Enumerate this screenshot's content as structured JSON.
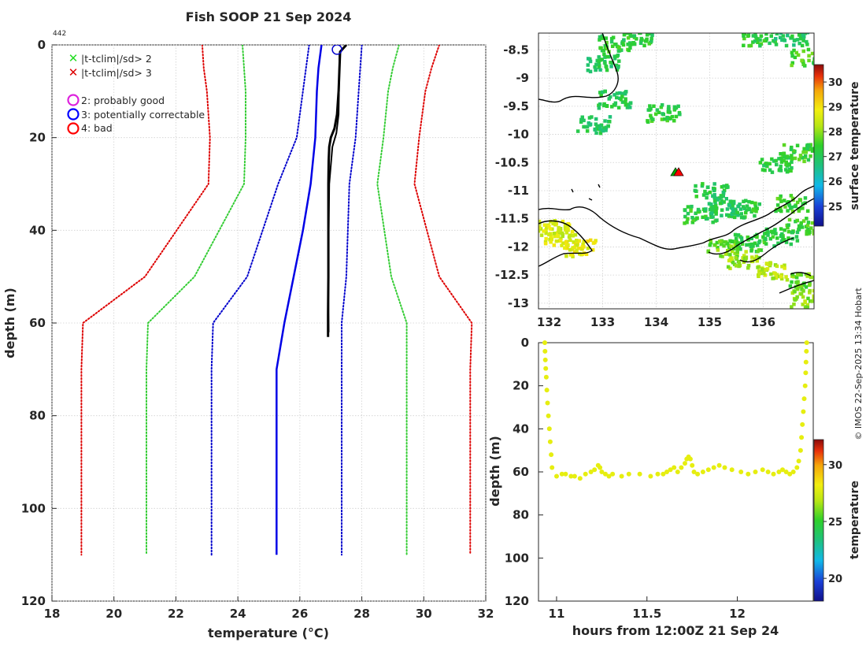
{
  "title": "Fish SOOP 21 Sep 2024",
  "profile_count": "442",
  "credit": "© IMOS 22-Sep-2025 13:34 Hobart",
  "chart_data": [
    {
      "id": "profile",
      "type": "line",
      "xlabel": "temperature (°C)",
      "ylabel": "depth (m)",
      "xlim": [
        18,
        32
      ],
      "ylim": [
        0,
        120
      ],
      "y_reversed": true,
      "grid": true,
      "xticks": [
        18,
        20,
        22,
        24,
        26,
        28,
        30,
        32
      ],
      "yticks": [
        0,
        20,
        40,
        60,
        80,
        100,
        120
      ],
      "legend": [
        {
          "label": "|t-tclim|/sd> 2",
          "marker": "x",
          "color": "#22dd22"
        },
        {
          "label": "|t-tclim|/sd> 3",
          "marker": "x",
          "color": "#dd0000"
        },
        {
          "label": "2: probably good",
          "marker": "o",
          "color": "#dd22dd"
        },
        {
          "label": "3: potentially correctable",
          "marker": "o",
          "color": "#0000ff"
        },
        {
          "label": "4: bad",
          "marker": "o",
          "color": "#ff0000"
        }
      ],
      "series": [
        {
          "name": "climatology mean",
          "style": "solid",
          "color": "#0000e6",
          "width": 2.5,
          "x": [
            26.7,
            26.6,
            26.55,
            26.5,
            26.35,
            26.1,
            25.8,
            25.5,
            25.25,
            25.25
          ],
          "y": [
            0,
            5,
            10,
            20,
            30,
            40,
            50,
            60,
            70,
            110
          ]
        },
        {
          "name": "clim -1sd",
          "style": "dotted",
          "color": "#0000cc",
          "width": 2,
          "x": [
            26.3,
            26.2,
            26.1,
            25.9,
            25.3,
            24.3,
            23.2,
            23.15,
            23.15
          ],
          "y": [
            0,
            5,
            10,
            20,
            30,
            50,
            60,
            70,
            110
          ]
        },
        {
          "name": "clim +1sd",
          "style": "dotted",
          "color": "#0000cc",
          "width": 2,
          "x": [
            28.0,
            27.95,
            27.9,
            27.8,
            27.6,
            27.5,
            27.35,
            27.35,
            27.35
          ],
          "y": [
            0,
            5,
            10,
            20,
            30,
            50,
            60,
            70,
            110
          ]
        },
        {
          "name": "clim -2sd",
          "style": "dotted",
          "color": "#33cc33",
          "width": 2,
          "x": [
            24.15,
            24.2,
            24.25,
            24.25,
            24.2,
            22.6,
            21.1,
            21.05,
            21.05
          ],
          "y": [
            0,
            5,
            10,
            20,
            30,
            50,
            60,
            70,
            110
          ]
        },
        {
          "name": "clim +2sd",
          "style": "dotted",
          "color": "#33cc33",
          "width": 2,
          "x": [
            29.2,
            29.0,
            28.85,
            28.7,
            28.5,
            28.95,
            29.45,
            29.45,
            29.45
          ],
          "y": [
            0,
            5,
            10,
            20,
            30,
            50,
            60,
            70,
            110
          ]
        },
        {
          "name": "clim -3sd",
          "style": "dotted",
          "color": "#dd0000",
          "width": 2,
          "x": [
            22.85,
            22.9,
            23.0,
            23.1,
            23.05,
            21.0,
            19.0,
            18.95,
            18.95
          ],
          "y": [
            0,
            5,
            10,
            20,
            30,
            50,
            60,
            70,
            110
          ]
        },
        {
          "name": "clim +3sd",
          "style": "dotted",
          "color": "#dd0000",
          "width": 2,
          "x": [
            30.5,
            30.25,
            30.05,
            29.85,
            29.7,
            30.5,
            31.55,
            31.5,
            31.5
          ],
          "y": [
            0,
            5,
            10,
            20,
            30,
            50,
            60,
            70,
            110
          ]
        },
        {
          "name": "observed profile (down)",
          "style": "solid",
          "color": "#000000",
          "width": 3,
          "x": [
            27.5,
            27.3,
            27.28,
            27.25,
            27.2,
            27.12,
            27.0,
            26.95,
            26.93,
            26.92,
            26.92,
            26.92,
            26.91,
            26.91
          ],
          "y": [
            0,
            1.5,
            5,
            10,
            15,
            18,
            20,
            22,
            25,
            30,
            40,
            50,
            58,
            63
          ]
        },
        {
          "name": "observed profile (up)",
          "style": "solid",
          "color": "#000000",
          "width": 2,
          "x": [
            26.93,
            26.92,
            26.93,
            26.95,
            27.05,
            27.18,
            27.25,
            27.28
          ],
          "y": [
            62,
            55,
            40,
            30,
            22,
            19,
            15,
            2
          ]
        }
      ],
      "surface_marker": {
        "x": 27.2,
        "y": 1.0,
        "color": "#0000cc",
        "shape": "circle"
      }
    },
    {
      "id": "map",
      "type": "heatmap",
      "xlim": [
        131.8,
        136.95
      ],
      "ylim": [
        -13.1,
        -8.2
      ],
      "xticks": [
        132,
        133,
        134,
        135,
        136
      ],
      "yticks": [
        -8.5,
        -9,
        -9.5,
        -10,
        -10.5,
        -11,
        -11.5,
        -12,
        -12.5,
        -13
      ],
      "colorbar": {
        "label": "surface temperature",
        "range": [
          24.2,
          30.7
        ],
        "ticks": [
          25,
          26,
          27,
          28,
          29,
          30
        ]
      },
      "station": {
        "lon": 134.45,
        "lat": -10.63,
        "marker_colors": [
          "#00aa00",
          "#ff0000"
        ]
      },
      "sst_patches": [
        {
          "lon": 133.0,
          "lat": -8.7,
          "temp": 27.0
        },
        {
          "lon": 133.2,
          "lat": -8.35,
          "temp": 27.3
        },
        {
          "lon": 133.6,
          "lat": -8.25,
          "temp": 27.2
        },
        {
          "lon": 133.2,
          "lat": -9.35,
          "temp": 27.1
        },
        {
          "lon": 132.8,
          "lat": -9.8,
          "temp": 27.0
        },
        {
          "lon": 134.1,
          "lat": -9.6,
          "temp": 27.3
        },
        {
          "lon": 135.9,
          "lat": -8.25,
          "temp": 27.3
        },
        {
          "lon": 136.5,
          "lat": -8.25,
          "temp": 27.0
        },
        {
          "lon": 136.8,
          "lat": -8.6,
          "temp": 27.5
        },
        {
          "lon": 135.6,
          "lat": -11.3,
          "temp": 27.2
        },
        {
          "lon": 135.0,
          "lat": -11.0,
          "temp": 27.1
        },
        {
          "lon": 134.8,
          "lat": -11.4,
          "temp": 27.3
        },
        {
          "lon": 135.2,
          "lat": -11.3,
          "temp": 27.0
        },
        {
          "lon": 136.2,
          "lat": -10.5,
          "temp": 27.2
        },
        {
          "lon": 136.6,
          "lat": -10.3,
          "temp": 27.4
        },
        {
          "lon": 136.5,
          "lat": -11.2,
          "temp": 27.5
        },
        {
          "lon": 135.2,
          "lat": -12.0,
          "temp": 27.8
        },
        {
          "lon": 135.7,
          "lat": -11.9,
          "temp": 27.3
        },
        {
          "lon": 136.3,
          "lat": -11.8,
          "temp": 27.2
        },
        {
          "lon": 136.7,
          "lat": -11.6,
          "temp": 27.4
        },
        {
          "lon": 135.6,
          "lat": -12.2,
          "temp": 28.1
        },
        {
          "lon": 136.15,
          "lat": -12.4,
          "temp": 28.3
        },
        {
          "lon": 136.8,
          "lat": -12.9,
          "temp": 28.0
        },
        {
          "lon": 136.75,
          "lat": -12.6,
          "temp": 27.7
        },
        {
          "lon": 132.2,
          "lat": -11.8,
          "temp": 28.6
        },
        {
          "lon": 132.05,
          "lat": -11.65,
          "temp": 28.5
        },
        {
          "lon": 132.55,
          "lat": -12.0,
          "temp": 28.8
        }
      ]
    },
    {
      "id": "track",
      "type": "scatter",
      "xlabel": "hours from 12:00Z 21 Sep 24",
      "ylabel": "depth (m)",
      "xlim": [
        10.9,
        12.42
      ],
      "ylim": [
        0,
        120
      ],
      "y_reversed": true,
      "xticks": [
        11,
        11.5,
        12
      ],
      "yticks": [
        0,
        20,
        40,
        60,
        80,
        100,
        120
      ],
      "colorbar": {
        "label": "temperature",
        "range": [
          18,
          32.2
        ],
        "ticks": [
          20,
          25,
          30
        ]
      },
      "marker_color": "#e6ee10",
      "x": [
        10.935,
        10.936,
        10.938,
        10.94,
        10.943,
        10.946,
        10.95,
        10.955,
        10.96,
        10.965,
        10.97,
        10.975,
        11.0,
        11.03,
        11.05,
        11.08,
        11.1,
        11.13,
        11.16,
        11.19,
        11.21,
        11.23,
        11.24,
        11.25,
        11.27,
        11.29,
        11.31,
        11.36,
        11.4,
        11.46,
        11.52,
        11.56,
        11.59,
        11.61,
        11.63,
        11.65,
        11.67,
        11.69,
        11.71,
        11.72,
        11.73,
        11.74,
        11.75,
        11.76,
        11.78,
        11.81,
        11.84,
        11.87,
        11.9,
        11.93,
        11.97,
        12.02,
        12.06,
        12.1,
        12.14,
        12.17,
        12.2,
        12.23,
        12.25,
        12.27,
        12.29,
        12.31,
        12.33,
        12.34,
        12.35,
        12.355,
        12.36,
        12.365,
        12.37,
        12.375,
        12.378,
        12.38,
        12.382,
        12.384
      ],
      "y": [
        0,
        4,
        8,
        12,
        16,
        22,
        28,
        34,
        40,
        46,
        52,
        58,
        62,
        61,
        61,
        62,
        62,
        63,
        61,
        60,
        59,
        57,
        58,
        60,
        61,
        62,
        61,
        62,
        61,
        61,
        62,
        61,
        61,
        60,
        59,
        58,
        60,
        58,
        56,
        54,
        53,
        54,
        57,
        60,
        61,
        60,
        59,
        58,
        57,
        58,
        59,
        60,
        61,
        60,
        59,
        60,
        61,
        60,
        59,
        60,
        61,
        60,
        58,
        55,
        50,
        44,
        38,
        32,
        26,
        20,
        14,
        9,
        4,
        0
      ]
    }
  ]
}
